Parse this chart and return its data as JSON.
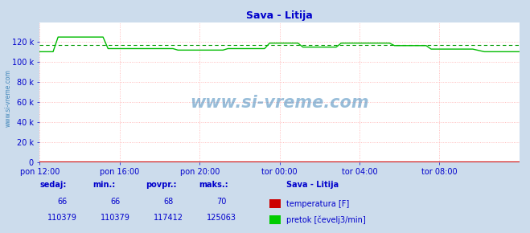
{
  "title": "Sava - Litija",
  "title_color": "#0000cc",
  "bg_color": "#ccdcec",
  "plot_bg_color": "#ffffff",
  "grid_color": "#ffaaaa",
  "tick_color": "#0000cc",
  "x_labels": [
    "pon 12:00",
    "pon 16:00",
    "pon 20:00",
    "tor 00:00",
    "tor 04:00",
    "tor 08:00"
  ],
  "x_ticks": [
    0,
    48,
    96,
    144,
    192,
    240
  ],
  "x_max": 288,
  "ylim": [
    0,
    140000
  ],
  "yticks": [
    0,
    20000,
    40000,
    60000,
    80000,
    100000,
    120000
  ],
  "ytick_labels": [
    "0",
    "20 k",
    "40 k",
    "60 k",
    "80 k",
    "100 k",
    "120 k"
  ],
  "avg_line_value": 117412,
  "avg_line_color": "#009900",
  "flow_color": "#00bb00",
  "temp_color": "#cc0000",
  "watermark": "www.si-vreme.com",
  "watermark_color": "#4488bb",
  "sidebar_text": "www.si-vreme.com",
  "sidebar_color": "#4488bb",
  "legend_station": "Sava - Litija",
  "table_color": "#0000cc",
  "legend_temp_label": "temperatura [F]",
  "legend_temp_color": "#cc0000",
  "legend_flow_label": "pretok [čevelj3/min]",
  "legend_flow_color": "#00cc00",
  "table_headers": [
    "sedaj:",
    "min.:",
    "povpr.:",
    "maks.:"
  ],
  "table_values_temp": [
    "66",
    "66",
    "68",
    "70"
  ],
  "table_values_flow": [
    "110379",
    "110379",
    "117412",
    "125063"
  ],
  "arrow_color": "#cc0000",
  "n_points": 289
}
